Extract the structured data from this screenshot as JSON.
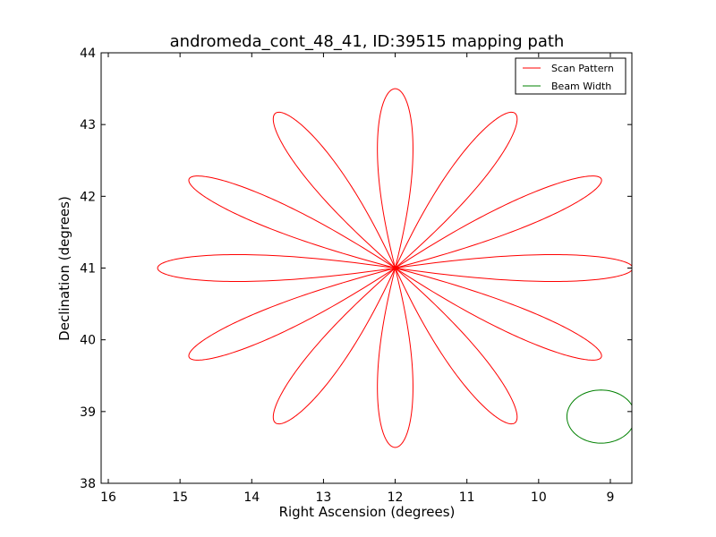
{
  "chart_data": {
    "type": "line",
    "title": "andromeda_cont_48_41, ID:39515 mapping path",
    "xlabel": "Right Ascension (degrees)",
    "ylabel": "Declination (degrees)",
    "xlim": [
      16.1,
      8.7
    ],
    "ylim": [
      38,
      44
    ],
    "x_ticks": [
      16,
      15,
      14,
      13,
      12,
      11,
      10,
      9
    ],
    "y_ticks": [
      38,
      39,
      40,
      41,
      42,
      43,
      44
    ],
    "grid": false,
    "legend_position": "top-right",
    "series": [
      {
        "name": "Scan Pattern",
        "color": "#ff0000",
        "kind": "rose",
        "center": [
          12,
          41
        ],
        "petals": 12,
        "petal_length_dec": 2.5,
        "petal_start_angle_deg": 90,
        "petal_half_width_deg": 10.5,
        "petal_exponent": 0.72
      },
      {
        "name": "Beam Width",
        "color": "#008000",
        "kind": "circle",
        "center": [
          9.13,
          38.93
        ],
        "radius_dec": 0.37
      }
    ]
  }
}
